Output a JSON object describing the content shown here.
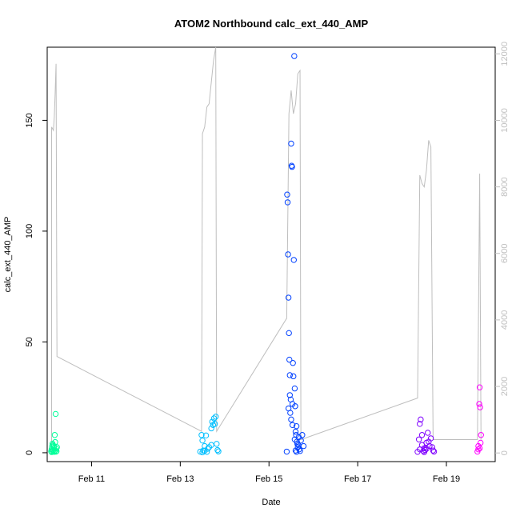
{
  "chart_data": {
    "type": "scatter",
    "title": "ATOM2 Northbound calc_ext_440_AMP",
    "xlabel": "Date",
    "ylabel": "calc_ext_440_AMP",
    "x_ticks": [
      "Feb 11",
      "Feb 13",
      "Feb 15",
      "Feb 17",
      "Feb 19"
    ],
    "x_range_days": [
      10.0,
      20.1
    ],
    "y_ticks": [
      0,
      50,
      100,
      150
    ],
    "ylim": [
      -4,
      183
    ],
    "y2_ticks": [
      0,
      2000,
      4000,
      6000,
      8000,
      10000,
      12000
    ],
    "y2lim": [
      -260,
      12200
    ],
    "grid": false,
    "legend": "none",
    "colors": {
      "group1": "#00FF99",
      "group2": "#00BFFF",
      "group3": "#0040FF",
      "group4": "#7F00FF",
      "group5": "#FF00FF",
      "line": "#BEBEBE"
    },
    "series": [
      {
        "color": "#00FF99",
        "points": [
          [
            10.09,
            0.6
          ],
          [
            10.1,
            1.5
          ],
          [
            10.11,
            2.8
          ],
          [
            10.12,
            0.8
          ],
          [
            10.13,
            3.5
          ],
          [
            10.14,
            1.2
          ],
          [
            10.15,
            2.2
          ],
          [
            10.16,
            0.4
          ],
          [
            10.17,
            8.0
          ],
          [
            10.18,
            4.8
          ],
          [
            10.19,
            17.5
          ],
          [
            10.2,
            1.9
          ],
          [
            10.21,
            0.7
          ],
          [
            10.22,
            2.5
          ],
          [
            10.1,
            0.3
          ],
          [
            10.12,
            4.1
          ],
          [
            10.15,
            3.0
          ],
          [
            10.18,
            1.1
          ],
          [
            10.2,
            0.5
          ]
        ]
      },
      {
        "color": "#00BFFF",
        "points": [
          [
            13.45,
            0.5
          ],
          [
            13.48,
            8.0
          ],
          [
            13.5,
            5.5
          ],
          [
            13.52,
            1.0
          ],
          [
            13.55,
            3.0
          ],
          [
            13.58,
            7.8
          ],
          [
            13.6,
            0.4
          ],
          [
            13.62,
            1.8
          ],
          [
            13.65,
            2.5
          ],
          [
            13.7,
            11.0
          ],
          [
            13.72,
            14.0
          ],
          [
            13.74,
            12.5
          ],
          [
            13.76,
            15.5
          ],
          [
            13.78,
            13.0
          ],
          [
            13.8,
            16.3
          ],
          [
            13.82,
            4.0
          ],
          [
            13.84,
            1.2
          ],
          [
            13.86,
            0.6
          ],
          [
            13.5,
            0.2
          ],
          [
            13.55,
            0.9
          ],
          [
            13.7,
            3.5
          ]
        ]
      },
      {
        "color": "#0040FF",
        "points": [
          [
            15.4,
            0.5
          ],
          [
            15.41,
            116.5
          ],
          [
            15.42,
            113.0
          ],
          [
            15.43,
            89.5
          ],
          [
            15.44,
            70.0
          ],
          [
            15.45,
            54.0
          ],
          [
            15.46,
            42.0
          ],
          [
            15.47,
            35.0
          ],
          [
            15.48,
            18.0
          ],
          [
            15.49,
            24.0
          ],
          [
            15.5,
            139.5
          ],
          [
            15.51,
            129.5
          ],
          [
            15.52,
            129.0
          ],
          [
            15.53,
            22.0
          ],
          [
            15.54,
            40.5
          ],
          [
            15.55,
            34.5
          ],
          [
            15.56,
            87.0
          ],
          [
            15.57,
            179.0
          ],
          [
            15.58,
            29.0
          ],
          [
            15.59,
            21.0
          ],
          [
            15.6,
            9.5
          ],
          [
            15.61,
            8.0
          ],
          [
            15.62,
            12.0
          ],
          [
            15.63,
            5.0
          ],
          [
            15.64,
            4.0
          ],
          [
            15.65,
            2.5
          ],
          [
            15.66,
            3.5
          ],
          [
            15.67,
            7.0
          ],
          [
            15.68,
            1.5
          ],
          [
            15.7,
            0.8
          ],
          [
            15.72,
            5.5
          ],
          [
            15.75,
            8.0
          ],
          [
            15.78,
            3.0
          ],
          [
            15.44,
            20.0
          ],
          [
            15.47,
            26.0
          ],
          [
            15.5,
            15.0
          ],
          [
            15.53,
            12.5
          ],
          [
            15.58,
            6.0
          ],
          [
            15.6,
            1.0
          ],
          [
            15.62,
            0.4
          ]
        ]
      },
      {
        "color": "#7F00FF",
        "points": [
          [
            18.35,
            0.4
          ],
          [
            18.38,
            6.0
          ],
          [
            18.4,
            13.0
          ],
          [
            18.42,
            15.0
          ],
          [
            18.45,
            8.0
          ],
          [
            18.48,
            0.8
          ],
          [
            18.5,
            2.0
          ],
          [
            18.52,
            1.2
          ],
          [
            18.55,
            4.5
          ],
          [
            18.58,
            9.0
          ],
          [
            18.6,
            5.0
          ],
          [
            18.62,
            3.0
          ],
          [
            18.65,
            6.5
          ],
          [
            18.68,
            2.5
          ],
          [
            18.7,
            1.0
          ],
          [
            18.72,
            0.5
          ],
          [
            18.4,
            1.5
          ],
          [
            18.45,
            3.5
          ],
          [
            18.5,
            0.3
          ],
          [
            18.55,
            1.8
          ]
        ]
      },
      {
        "color": "#FF00FF",
        "points": [
          [
            19.7,
            0.5
          ],
          [
            19.72,
            3.0
          ],
          [
            19.74,
            22.0
          ],
          [
            19.75,
            29.5
          ],
          [
            19.76,
            20.5
          ],
          [
            19.77,
            4.5
          ],
          [
            19.78,
            8.0
          ],
          [
            19.72,
            1.5
          ],
          [
            19.75,
            2.0
          ]
        ]
      }
    ],
    "line_series_y2": {
      "color": "#BEBEBE",
      "points": [
        [
          10.1,
          9800
        ],
        [
          10.14,
          9700
        ],
        [
          10.16,
          10100
        ],
        [
          10.18,
          10850
        ],
        [
          10.2,
          11700
        ],
        [
          10.22,
          2900
        ],
        [
          13.48,
          650
        ],
        [
          13.5,
          9600
        ],
        [
          13.55,
          9800
        ],
        [
          13.6,
          10400
        ],
        [
          13.65,
          10500
        ],
        [
          13.75,
          11800
        ],
        [
          13.8,
          12200
        ],
        [
          13.82,
          650
        ],
        [
          15.4,
          4050
        ],
        [
          15.45,
          10200
        ],
        [
          15.5,
          10900
        ],
        [
          15.55,
          10200
        ],
        [
          15.6,
          10500
        ],
        [
          15.65,
          11400
        ],
        [
          15.7,
          11500
        ],
        [
          15.72,
          400
        ],
        [
          18.35,
          1650
        ],
        [
          18.4,
          8350
        ],
        [
          18.45,
          8100
        ],
        [
          18.5,
          8000
        ],
        [
          18.55,
          8500
        ],
        [
          18.6,
          9400
        ],
        [
          18.65,
          9200
        ],
        [
          18.7,
          400
        ],
        [
          19.7,
          400
        ],
        [
          19.75,
          8400
        ],
        [
          19.78,
          400
        ]
      ]
    }
  }
}
